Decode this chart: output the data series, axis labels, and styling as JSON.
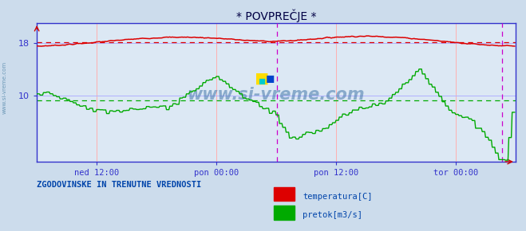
{
  "title": "* POVPREČJE *",
  "bg_color": "#ccdcec",
  "plot_bg_color": "#dce8f4",
  "grid_color_v": "#ffb0b0",
  "grid_color_h": "#b0b0ff",
  "border_color": "#3333cc",
  "tick_color": "#3333cc",
  "title_color": "#000044",
  "watermark_text": "www.si-vreme.com",
  "watermark_color": "#4477aa",
  "footnote": "ZGODOVINSKE IN TRENUTNE VREDNOSTI",
  "legend_labels": [
    "temperatura[C]",
    "pretok[m3/s]"
  ],
  "legend_colors": [
    "#dd0000",
    "#00aa00"
  ],
  "xtick_labels": [
    "ned 12:00",
    "pon 00:00",
    "pon 12:00",
    "tor 00:00"
  ],
  "yticks_left": [
    10,
    18
  ],
  "ylim": [
    0,
    21
  ],
  "xlim": [
    0,
    576
  ],
  "red_hline": 18.1,
  "green_hline": 9.3,
  "magenta_vline1": 289,
  "magenta_vline2": 560,
  "xtick_positions": [
    72,
    216,
    360,
    504
  ],
  "num_points": 576
}
